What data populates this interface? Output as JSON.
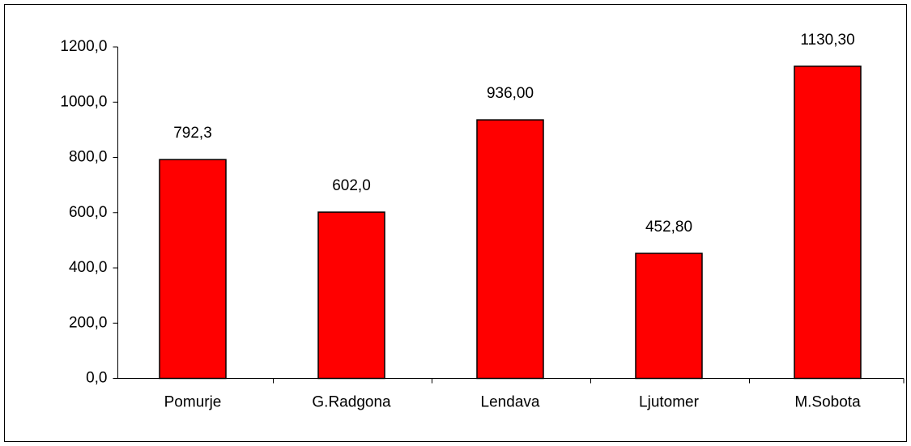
{
  "chart_data": {
    "type": "bar",
    "categories": [
      "Pomurje",
      "G.Radgona",
      "Lendava",
      "Ljutomer",
      "M.Sobota"
    ],
    "values": [
      792.3,
      602.0,
      936.0,
      452.8,
      1130.3
    ],
    "value_labels": [
      "792,3",
      "602,0",
      "936,00",
      "452,80",
      "1130,30"
    ],
    "color": "#ff0000",
    "ylim": [
      0,
      1200
    ],
    "yticks": [
      {
        "value": 0,
        "label": "0,0"
      },
      {
        "value": 200,
        "label": "200,0"
      },
      {
        "value": 400,
        "label": "400,0"
      },
      {
        "value": 600,
        "label": "600,0"
      },
      {
        "value": 800,
        "label": "800,0"
      },
      {
        "value": 1000,
        "label": "1000,0"
      },
      {
        "value": 1200,
        "label": "1200,0"
      }
    ],
    "grid": false
  }
}
